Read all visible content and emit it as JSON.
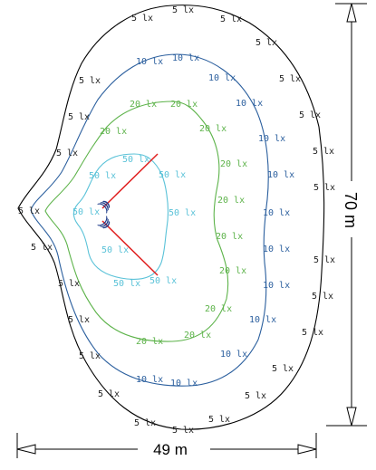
{
  "diagram": {
    "dimensions": {
      "width_label": "49 m",
      "height_label": "70 m"
    },
    "contours": [
      {
        "value": 5,
        "unit": "lx",
        "label": "5 lx",
        "color": "#000000"
      },
      {
        "value": 10,
        "unit": "lx",
        "label": "10 lx",
        "color": "#2b5f9e"
      },
      {
        "value": 20,
        "unit": "lx",
        "label": "20 lx",
        "color": "#5db34a"
      },
      {
        "value": 50,
        "unit": "lx",
        "label": "50 lx",
        "color": "#5ac2d8"
      }
    ],
    "beam_color": "#e01e1e",
    "fixture_color": "#1f3d8a"
  }
}
